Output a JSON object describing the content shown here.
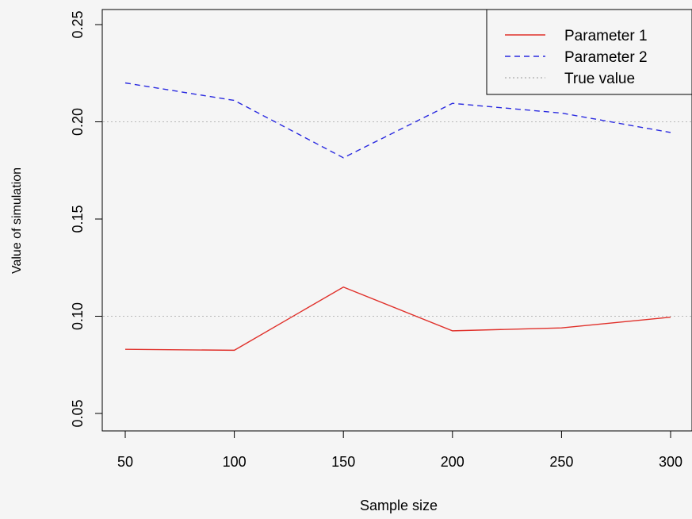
{
  "chart_data": {
    "type": "line",
    "title": "",
    "xlabel": "Sample size",
    "ylabel": "Value of simulation",
    "xlim": [
      40,
      305
    ],
    "ylim": [
      0.04,
      0.26
    ],
    "x_ticks": [
      50,
      100,
      150,
      200,
      250,
      300
    ],
    "x_tick_labels": [
      "50",
      "100",
      "150",
      "200",
      "250",
      "300"
    ],
    "y_ticks": [
      0.05,
      0.1,
      0.15,
      0.2,
      0.25
    ],
    "y_tick_labels": [
      "0.05",
      "0.10",
      "0.15",
      "0.20",
      "0.25"
    ],
    "grid": false,
    "legend_position": "top-right",
    "x": [
      50,
      100,
      150,
      200,
      250,
      300
    ],
    "series": [
      {
        "name": "Parameter 1",
        "values": [
          0.083,
          0.0825,
          0.115,
          0.0925,
          0.094,
          0.0995
        ],
        "color": "#e0302a",
        "dash": "solid"
      },
      {
        "name": "Parameter 2",
        "values": [
          0.22,
          0.211,
          0.1815,
          0.2095,
          0.2045,
          0.1945
        ],
        "color": "#2a2ae0",
        "dash": "dashed"
      }
    ],
    "reference_lines": [
      {
        "legend_label": "True value",
        "values": [
          0.1,
          0.2
        ],
        "color": "#b8b8b8",
        "dash": "dotted"
      }
    ]
  }
}
